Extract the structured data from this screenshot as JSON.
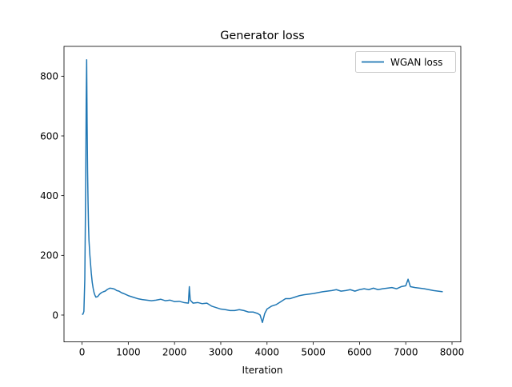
{
  "chart_data": {
    "type": "line",
    "title": "Generator loss",
    "xlabel": "Iteration",
    "ylabel": "",
    "xlim": [
      -390,
      8190
    ],
    "ylim": [
      -90,
      900
    ],
    "xticks": [
      0,
      1000,
      2000,
      3000,
      4000,
      5000,
      6000,
      7000,
      8000
    ],
    "yticks": [
      0,
      200,
      400,
      600,
      800
    ],
    "grid": false,
    "legend_position": "top-right",
    "colors": {
      "series": "#1f77b4",
      "axes": "#000000",
      "background": "#ffffff"
    },
    "series": [
      {
        "name": "WGAN loss",
        "x": [
          0,
          20,
          40,
          60,
          80,
          90,
          100,
          110,
          120,
          130,
          140,
          150,
          160,
          170,
          180,
          200,
          220,
          240,
          260,
          280,
          300,
          340,
          380,
          420,
          460,
          500,
          550,
          600,
          650,
          700,
          750,
          800,
          850,
          900,
          1000,
          1100,
          1200,
          1300,
          1400,
          1500,
          1600,
          1700,
          1800,
          1900,
          2000,
          2100,
          2200,
          2300,
          2320,
          2340,
          2400,
          2500,
          2600,
          2700,
          2800,
          2900,
          3000,
          3100,
          3200,
          3300,
          3400,
          3500,
          3600,
          3700,
          3800,
          3850,
          3900,
          3950,
          4000,
          4100,
          4200,
          4300,
          4400,
          4500,
          4600,
          4700,
          4800,
          4900,
          5000,
          5100,
          5200,
          5300,
          5400,
          5500,
          5600,
          5700,
          5800,
          5900,
          6000,
          6100,
          6200,
          6300,
          6400,
          6500,
          6600,
          6700,
          6800,
          6900,
          7000,
          7050,
          7100,
          7200,
          7300,
          7400,
          7500,
          7600,
          7700,
          7800
        ],
        "y": [
          2,
          3,
          12,
          120,
          450,
          720,
          855,
          640,
          480,
          380,
          300,
          250,
          225,
          200,
          180,
          140,
          110,
          90,
          75,
          66,
          60,
          62,
          70,
          75,
          78,
          80,
          86,
          90,
          89,
          87,
          82,
          80,
          75,
          72,
          65,
          60,
          55,
          52,
          50,
          48,
          50,
          53,
          48,
          50,
          45,
          46,
          42,
          40,
          95,
          50,
          40,
          42,
          38,
          40,
          30,
          25,
          20,
          18,
          15,
          15,
          18,
          15,
          10,
          10,
          5,
          0,
          -25,
          5,
          20,
          30,
          35,
          45,
          55,
          55,
          60,
          65,
          68,
          70,
          72,
          75,
          78,
          80,
          82,
          85,
          80,
          82,
          85,
          80,
          85,
          88,
          85,
          90,
          85,
          88,
          90,
          92,
          88,
          95,
          98,
          120,
          95,
          92,
          90,
          88,
          85,
          82,
          80,
          78
        ]
      }
    ]
  }
}
